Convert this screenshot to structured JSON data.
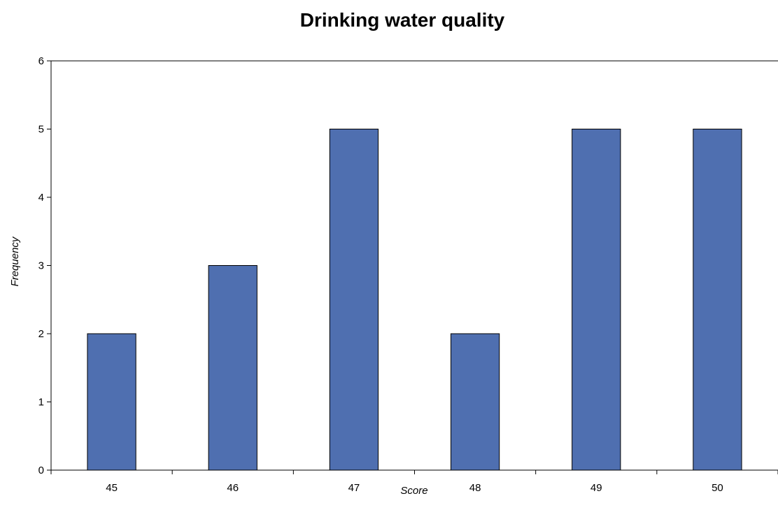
{
  "chart_data": {
    "type": "bar",
    "title": "Drinking water quality",
    "xlabel": "Score",
    "ylabel": "Frequency",
    "categories": [
      "45",
      "46",
      "47",
      "48",
      "49",
      "50"
    ],
    "values": [
      2,
      3,
      5,
      2,
      5,
      5
    ],
    "ylim": [
      0,
      6
    ],
    "yticks": [
      "0",
      "1",
      "2",
      "3",
      "4",
      "5",
      "6"
    ],
    "grid": false,
    "legend": "none",
    "colors": {
      "bar_fill": "#4f6fb0",
      "bar_stroke": "#000000",
      "axis": "#000000"
    }
  }
}
